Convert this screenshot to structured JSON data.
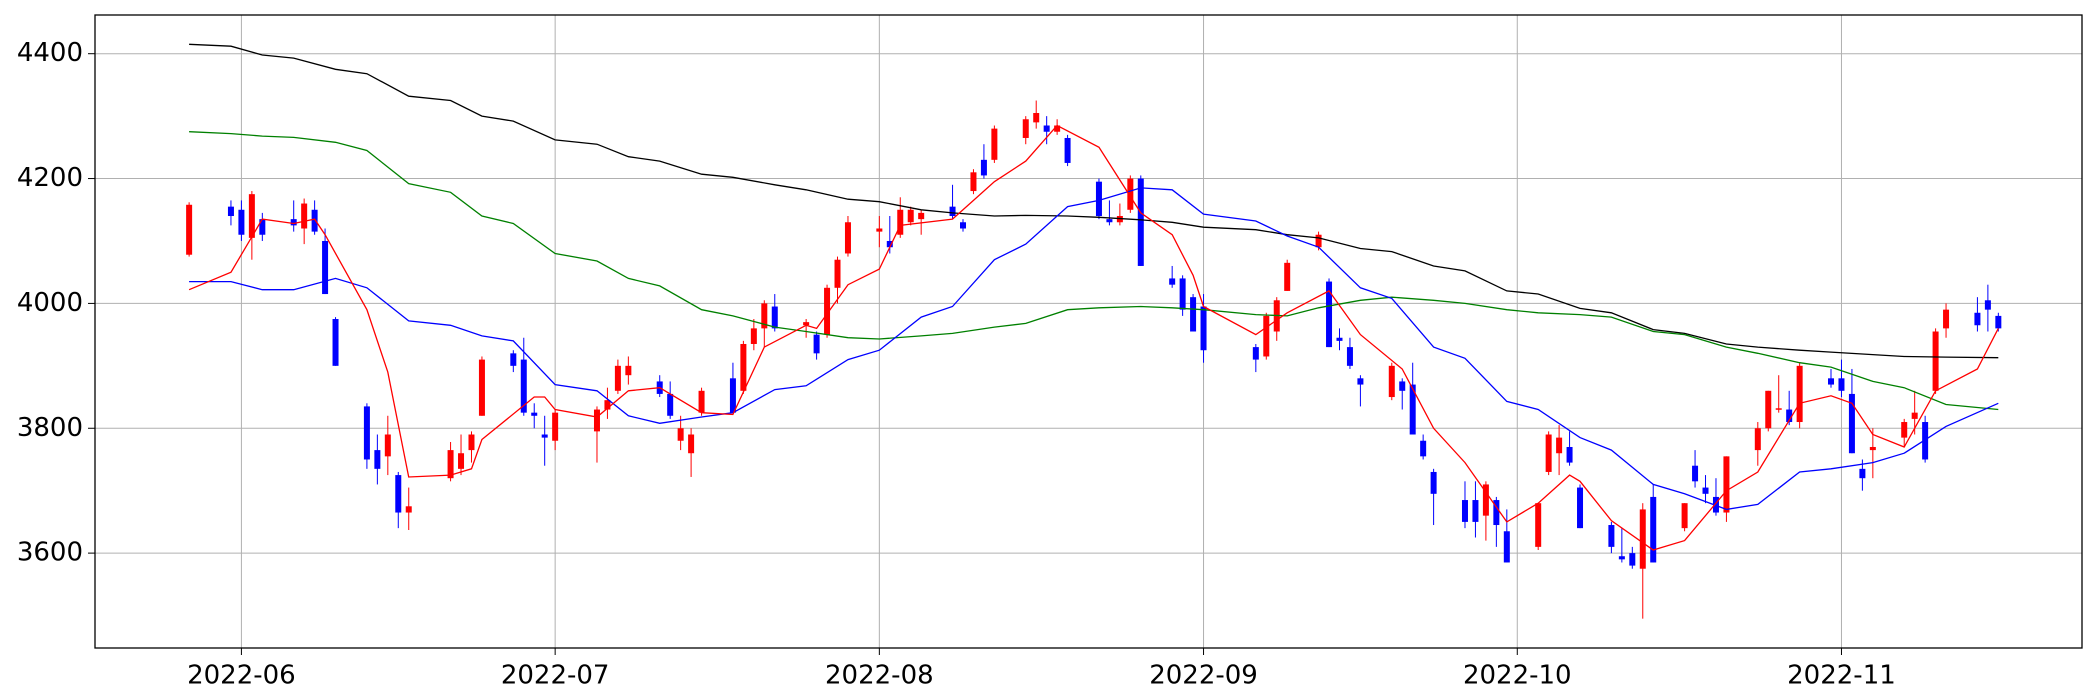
{
  "chart_data": {
    "type": "candlestick",
    "xlim": [
      "2022-05-18",
      "2022-11-24"
    ],
    "xticks": [
      {
        "value": "2022-06-01",
        "label": "2022-06"
      },
      {
        "value": "2022-07-01",
        "label": "2022-07"
      },
      {
        "value": "2022-08-01",
        "label": "2022-08"
      },
      {
        "value": "2022-09-01",
        "label": "2022-09"
      },
      {
        "value": "2022-10-01",
        "label": "2022-10"
      },
      {
        "value": "2022-11-01",
        "label": "2022-11"
      }
    ],
    "ylim": [
      3448,
      4462
    ],
    "yticks": [
      3600,
      3800,
      4000,
      4200,
      4400
    ],
    "grid": true,
    "up_color": "#ff0000",
    "down_color": "#0000ff",
    "x": [
      "2022-05-27",
      "2022-05-31",
      "2022-06-01",
      "2022-06-02",
      "2022-06-03",
      "2022-06-06",
      "2022-06-07",
      "2022-06-08",
      "2022-06-09",
      "2022-06-10",
      "2022-06-13",
      "2022-06-14",
      "2022-06-15",
      "2022-06-16",
      "2022-06-17",
      "2022-06-21",
      "2022-06-22",
      "2022-06-23",
      "2022-06-24",
      "2022-06-27",
      "2022-06-28",
      "2022-06-29",
      "2022-06-30",
      "2022-07-01",
      "2022-07-05",
      "2022-07-06",
      "2022-07-07",
      "2022-07-08",
      "2022-07-11",
      "2022-07-12",
      "2022-07-13",
      "2022-07-14",
      "2022-07-15",
      "2022-07-18",
      "2022-07-19",
      "2022-07-20",
      "2022-07-21",
      "2022-07-22",
      "2022-07-25",
      "2022-07-26",
      "2022-07-27",
      "2022-07-28",
      "2022-07-29",
      "2022-08-01",
      "2022-08-02",
      "2022-08-03",
      "2022-08-04",
      "2022-08-05",
      "2022-08-08",
      "2022-08-09",
      "2022-08-10",
      "2022-08-11",
      "2022-08-12",
      "2022-08-15",
      "2022-08-16",
      "2022-08-17",
      "2022-08-18",
      "2022-08-19",
      "2022-08-22",
      "2022-08-23",
      "2022-08-24",
      "2022-08-25",
      "2022-08-26",
      "2022-08-29",
      "2022-08-30",
      "2022-08-31",
      "2022-09-01",
      "2022-09-06",
      "2022-09-07",
      "2022-09-08",
      "2022-09-09",
      "2022-09-12",
      "2022-09-13",
      "2022-09-14",
      "2022-09-15",
      "2022-09-16",
      "2022-09-19",
      "2022-09-20",
      "2022-09-21",
      "2022-09-22",
      "2022-09-23",
      "2022-09-26",
      "2022-09-27",
      "2022-09-28",
      "2022-09-29",
      "2022-09-30",
      "2022-10-03",
      "2022-10-04",
      "2022-10-05",
      "2022-10-06",
      "2022-10-07",
      "2022-10-10",
      "2022-10-11",
      "2022-10-12",
      "2022-10-13",
      "2022-10-14",
      "2022-10-17",
      "2022-10-18",
      "2022-10-19",
      "2022-10-20",
      "2022-10-21",
      "2022-10-24",
      "2022-10-25",
      "2022-10-26",
      "2022-10-27",
      "2022-10-28",
      "2022-10-31",
      "2022-11-01",
      "2022-11-02",
      "2022-11-03",
      "2022-11-04",
      "2022-11-07",
      "2022-11-08",
      "2022-11-09",
      "2022-11-10",
      "2022-11-11",
      "2022-11-14",
      "2022-11-15",
      "2022-11-16"
    ],
    "open": [
      4078,
      4155,
      4150,
      4105,
      4135,
      4135,
      4120,
      4150,
      4100,
      3975,
      3835,
      3765,
      3755,
      3725,
      3665,
      3720,
      3735,
      3765,
      3820,
      3920,
      3910,
      3825,
      3790,
      3780,
      3795,
      3830,
      3860,
      3885,
      3875,
      3855,
      3780,
      3760,
      3825,
      3880,
      3860,
      3935,
      3960,
      3995,
      3965,
      3950,
      3950,
      4025,
      4080,
      4115,
      4100,
      4110,
      4130,
      4135,
      4155,
      4130,
      4180,
      4230,
      4230,
      4265,
      4290,
      4285,
      4275,
      4265,
      4195,
      4135,
      4130,
      4150,
      4200,
      4040,
      4040,
      4010,
      3995,
      3930,
      3915,
      3955,
      4020,
      4090,
      4035,
      3945,
      3930,
      3880,
      3850,
      3875,
      3870,
      3780,
      3730,
      3685,
      3685,
      3660,
      3685,
      3635,
      3610,
      3730,
      3760,
      3770,
      3705,
      3645,
      3595,
      3600,
      3575,
      3690,
      3640,
      3740,
      3705,
      3690,
      3665,
      3765,
      3800,
      3830,
      3830,
      3810,
      3880,
      3880,
      3855,
      3735,
      3765,
      3785,
      3815,
      3810,
      3860,
      3960,
      3985,
      4005,
      3980
    ],
    "high": [
      4162,
      4165,
      4165,
      4180,
      4145,
      4165,
      4168,
      4165,
      4120,
      3978,
      3840,
      3790,
      3820,
      3730,
      3705,
      3778,
      3790,
      3795,
      3915,
      3925,
      3945,
      3840,
      3820,
      3830,
      3835,
      3865,
      3910,
      3915,
      3885,
      3875,
      3820,
      3800,
      3865,
      3905,
      3940,
      3975,
      4005,
      4015,
      3975,
      3955,
      4030,
      4075,
      4140,
      4140,
      4140,
      4170,
      4155,
      4150,
      4190,
      4135,
      4215,
      4255,
      4285,
      4300,
      4325,
      4300,
      4295,
      4270,
      4200,
      4165,
      4160,
      4205,
      4205,
      4060,
      4045,
      4015,
      4015,
      3935,
      3985,
      4010,
      4070,
      4115,
      4040,
      3960,
      3945,
      3885,
      3905,
      3880,
      3905,
      3790,
      3735,
      3715,
      3715,
      3715,
      3690,
      3670,
      3680,
      3795,
      3805,
      3795,
      3710,
      3650,
      3640,
      3610,
      3680,
      3710,
      3680,
      3765,
      3725,
      3720,
      3755,
      3810,
      3860,
      3885,
      3860,
      3905,
      3895,
      3910,
      3895,
      3750,
      3800,
      3815,
      3860,
      3820,
      3960,
      4000,
      4010,
      4030,
      3985
    ],
    "low": [
      4075,
      4125,
      4100,
      4070,
      4100,
      4115,
      4095,
      4110,
      4015,
      3900,
      3735,
      3710,
      3725,
      3640,
      3637,
      3715,
      3725,
      3745,
      3820,
      3890,
      3820,
      3800,
      3740,
      3765,
      3745,
      3815,
      3855,
      3870,
      3850,
      3815,
      3765,
      3722,
      3820,
      3825,
      3855,
      3925,
      3930,
      3955,
      3945,
      3910,
      3945,
      4000,
      4075,
      4090,
      4080,
      4105,
      4125,
      4110,
      4135,
      4115,
      4175,
      4200,
      4225,
      4255,
      4280,
      4255,
      4270,
      4220,
      4135,
      4125,
      4125,
      4145,
      4060,
      4025,
      3980,
      3955,
      3905,
      3890,
      3910,
      3940,
      4020,
      4085,
      3930,
      3925,
      3895,
      3835,
      3845,
      3830,
      3790,
      3750,
      3645,
      3640,
      3625,
      3620,
      3610,
      3585,
      3605,
      3725,
      3725,
      3740,
      3640,
      3600,
      3585,
      3575,
      3495,
      3585,
      3635,
      3705,
      3680,
      3660,
      3650,
      3740,
      3795,
      3825,
      3805,
      3800,
      3865,
      3850,
      3760,
      3700,
      3720,
      3770,
      3790,
      3745,
      3855,
      3945,
      3955,
      3955,
      3955
    ],
    "close": [
      4158,
      4140,
      4110,
      4175,
      4110,
      4125,
      4160,
      4115,
      4015,
      3900,
      3750,
      3735,
      3790,
      3665,
      3675,
      3765,
      3760,
      3790,
      3910,
      3900,
      3825,
      3820,
      3785,
      3825,
      3830,
      3845,
      3900,
      3900,
      3855,
      3820,
      3800,
      3790,
      3860,
      3825,
      3935,
      3960,
      4000,
      3960,
      3970,
      3920,
      4025,
      4070,
      4130,
      4120,
      4090,
      4150,
      4150,
      4145,
      4140,
      4120,
      4210,
      4205,
      4280,
      4295,
      4305,
      4275,
      4285,
      4225,
      4140,
      4130,
      4140,
      4200,
      4060,
      4030,
      3990,
      3955,
      3925,
      3910,
      3980,
      4005,
      4065,
      4110,
      3930,
      3940,
      3900,
      3870,
      3900,
      3860,
      3790,
      3755,
      3695,
      3650,
      3650,
      3710,
      3645,
      3585,
      3680,
      3790,
      3785,
      3745,
      3640,
      3610,
      3590,
      3580,
      3670,
      3585,
      3680,
      3715,
      3695,
      3665,
      3755,
      3800,
      3860,
      3832,
      3810,
      3900,
      3870,
      3860,
      3760,
      3720,
      3770,
      3810,
      3825,
      3750,
      3955,
      3990,
      3965,
      3990,
      3960
    ],
    "lines": [
      {
        "color": "#000000",
        "x": [
          "2022-05-27",
          "2022-05-31",
          "2022-06-03",
          "2022-06-06",
          "2022-06-10",
          "2022-06-13",
          "2022-06-17",
          "2022-06-21",
          "2022-06-24",
          "2022-06-27",
          "2022-07-01",
          "2022-07-05",
          "2022-07-08",
          "2022-07-11",
          "2022-07-15",
          "2022-07-18",
          "2022-07-22",
          "2022-07-25",
          "2022-07-29",
          "2022-08-01",
          "2022-08-05",
          "2022-08-08",
          "2022-08-12",
          "2022-08-15",
          "2022-08-19",
          "2022-08-22",
          "2022-08-26",
          "2022-08-29",
          "2022-09-01",
          "2022-09-06",
          "2022-09-09",
          "2022-09-12",
          "2022-09-16",
          "2022-09-19",
          "2022-09-23",
          "2022-09-26",
          "2022-09-30",
          "2022-10-03",
          "2022-10-07",
          "2022-10-10",
          "2022-10-14",
          "2022-10-17",
          "2022-10-21",
          "2022-10-24",
          "2022-10-28",
          "2022-10-31",
          "2022-11-04",
          "2022-11-07",
          "2022-11-11",
          "2022-11-16"
        ],
        "values": [
          4415,
          4412,
          4398,
          4393,
          4375,
          4368,
          4332,
          4325,
          4300,
          4292,
          4262,
          4255,
          4235,
          4228,
          4207,
          4202,
          4190,
          4182,
          4167,
          4163,
          4150,
          4145,
          4140,
          4141,
          4140,
          4138,
          4134,
          4130,
          4122,
          4118,
          4110,
          4105,
          4088,
          4083,
          4060,
          4052,
          4020,
          4015,
          3992,
          3985,
          3958,
          3952,
          3935,
          3930,
          3925,
          3922,
          3918,
          3915,
          3914,
          3913
        ]
      },
      {
        "color": "#008000",
        "x": [
          "2022-05-27",
          "2022-05-31",
          "2022-06-03",
          "2022-06-06",
          "2022-06-10",
          "2022-06-13",
          "2022-06-17",
          "2022-06-21",
          "2022-06-24",
          "2022-06-27",
          "2022-07-01",
          "2022-07-05",
          "2022-07-08",
          "2022-07-11",
          "2022-07-15",
          "2022-07-18",
          "2022-07-22",
          "2022-07-25",
          "2022-07-29",
          "2022-08-01",
          "2022-08-05",
          "2022-08-08",
          "2022-08-12",
          "2022-08-15",
          "2022-08-19",
          "2022-08-22",
          "2022-08-26",
          "2022-08-29",
          "2022-09-01",
          "2022-09-06",
          "2022-09-09",
          "2022-09-12",
          "2022-09-16",
          "2022-09-19",
          "2022-09-23",
          "2022-09-26",
          "2022-09-30",
          "2022-10-03",
          "2022-10-07",
          "2022-10-10",
          "2022-10-14",
          "2022-10-17",
          "2022-10-21",
          "2022-10-24",
          "2022-10-28",
          "2022-10-31",
          "2022-11-04",
          "2022-11-07",
          "2022-11-11",
          "2022-11-16"
        ],
        "values": [
          4275,
          4272,
          4268,
          4266,
          4258,
          4245,
          4192,
          4178,
          4140,
          4128,
          4080,
          4068,
          4040,
          4028,
          3990,
          3980,
          3962,
          3955,
          3945,
          3943,
          3948,
          3952,
          3962,
          3968,
          3990,
          3993,
          3995,
          3993,
          3990,
          3982,
          3980,
          3993,
          4005,
          4010,
          4005,
          4000,
          3990,
          3985,
          3982,
          3978,
          3955,
          3950,
          3930,
          3920,
          3905,
          3898,
          3875,
          3865,
          3838,
          3830
        ]
      },
      {
        "color": "#0000ff",
        "x": [
          "2022-05-27",
          "2022-05-31",
          "2022-06-03",
          "2022-06-06",
          "2022-06-10",
          "2022-06-13",
          "2022-06-17",
          "2022-06-21",
          "2022-06-24",
          "2022-06-27",
          "2022-07-01",
          "2022-07-05",
          "2022-07-08",
          "2022-07-11",
          "2022-07-15",
          "2022-07-18",
          "2022-07-22",
          "2022-07-25",
          "2022-07-29",
          "2022-08-01",
          "2022-08-05",
          "2022-08-08",
          "2022-08-12",
          "2022-08-15",
          "2022-08-19",
          "2022-08-22",
          "2022-08-26",
          "2022-08-29",
          "2022-09-01",
          "2022-09-06",
          "2022-09-09",
          "2022-09-12",
          "2022-09-16",
          "2022-09-19",
          "2022-09-23",
          "2022-09-26",
          "2022-09-30",
          "2022-10-03",
          "2022-10-07",
          "2022-10-10",
          "2022-10-14",
          "2022-10-17",
          "2022-10-21",
          "2022-10-24",
          "2022-10-28",
          "2022-10-31",
          "2022-11-04",
          "2022-11-07",
          "2022-11-11",
          "2022-11-16"
        ],
        "values": [
          4035,
          4035,
          4022,
          4022,
          4040,
          4025,
          3972,
          3965,
          3948,
          3940,
          3870,
          3860,
          3820,
          3808,
          3818,
          3825,
          3862,
          3868,
          3910,
          3925,
          3978,
          3995,
          4070,
          4095,
          4155,
          4165,
          4185,
          4182,
          4143,
          4132,
          4108,
          4090,
          4025,
          4008,
          3930,
          3912,
          3843,
          3830,
          3785,
          3765,
          3710,
          3695,
          3670,
          3678,
          3730,
          3735,
          3745,
          3760,
          3803,
          3840
        ]
      },
      {
        "color": "#ff0000",
        "x": [
          "2022-05-27",
          "2022-05-31",
          "2022-06-03",
          "2022-06-06",
          "2022-06-08",
          "2022-06-09",
          "2022-06-13",
          "2022-06-15",
          "2022-06-17",
          "2022-06-21",
          "2022-06-23",
          "2022-06-24",
          "2022-06-29",
          "2022-06-30",
          "2022-07-01",
          "2022-07-05",
          "2022-07-08",
          "2022-07-11",
          "2022-07-15",
          "2022-07-18",
          "2022-07-21",
          "2022-07-25",
          "2022-07-26",
          "2022-07-29",
          "2022-08-01",
          "2022-08-03",
          "2022-08-08",
          "2022-08-10",
          "2022-08-12",
          "2022-08-15",
          "2022-08-18",
          "2022-08-22",
          "2022-08-26",
          "2022-08-29",
          "2022-08-31",
          "2022-09-01",
          "2022-09-06",
          "2022-09-09",
          "2022-09-13",
          "2022-09-16",
          "2022-09-20",
          "2022-09-23",
          "2022-09-26",
          "2022-09-30",
          "2022-10-03",
          "2022-10-06",
          "2022-10-07",
          "2022-10-10",
          "2022-10-14",
          "2022-10-17",
          "2022-10-21",
          "2022-10-24",
          "2022-10-28",
          "2022-10-31",
          "2022-11-02",
          "2022-11-04",
          "2022-11-07",
          "2022-11-10",
          "2022-11-14",
          "2022-11-16"
        ],
        "values": [
          4022,
          4050,
          4135,
          4128,
          4135,
          4110,
          3990,
          3890,
          3722,
          3725,
          3735,
          3782,
          3850,
          3850,
          3830,
          3818,
          3860,
          3865,
          3825,
          3822,
          3930,
          3965,
          3960,
          4030,
          4055,
          4125,
          4135,
          4165,
          4195,
          4228,
          4285,
          4250,
          4145,
          4110,
          4045,
          3995,
          3950,
          3985,
          4020,
          3950,
          3895,
          3800,
          3745,
          3650,
          3680,
          3725,
          3715,
          3652,
          3605,
          3620,
          3700,
          3730,
          3840,
          3852,
          3840,
          3790,
          3770,
          3860,
          3895,
          3960
        ]
      }
    ]
  }
}
